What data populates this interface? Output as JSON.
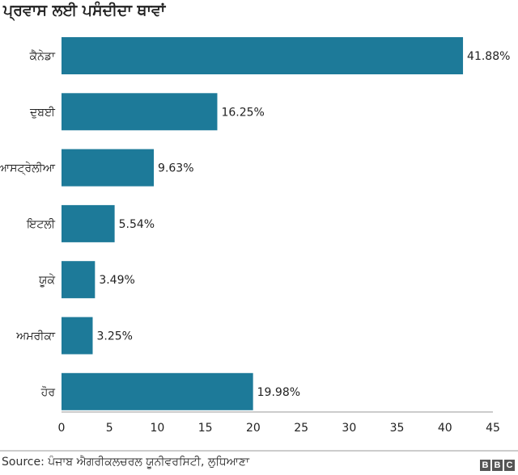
{
  "chart_data": {
    "type": "bar",
    "orientation": "horizontal",
    "title": "ਪ੍ਰਵਾਸ ਲਈ ਪਸੰਦੀਦਾ ਥਾਵਾਂ",
    "categories": [
      "ਕੈਨੇਡਾ",
      "ਦੁਬਈ",
      "ਆਸਟ੍ਰੇਲੀਆ",
      "ਇਟਲੀ",
      "ਯੂਕੇ",
      "ਅਮਰੀਕਾ",
      "ਹੋਰ"
    ],
    "values": [
      41.88,
      16.25,
      9.63,
      5.54,
      3.49,
      3.25,
      19.98
    ],
    "value_labels": [
      "41.88%",
      "16.25%",
      "9.63%",
      "5.54%",
      "3.49%",
      "3.25%",
      "19.98%"
    ],
    "xlim": [
      0,
      45
    ],
    "xticks": [
      0,
      5,
      10,
      15,
      20,
      25,
      30,
      35,
      40,
      45
    ],
    "xlabel": "",
    "ylabel": "",
    "grid": false,
    "bar_color": "#1d7a99",
    "source": "Source: ਪੰਜਾਬ ਐਗਰੀਕਲਚਰਲ ਯੂਨੀਵਰਸਿਟੀ, ਲੁਧਿਆਣਾ"
  },
  "logo": [
    "B",
    "B",
    "C"
  ]
}
